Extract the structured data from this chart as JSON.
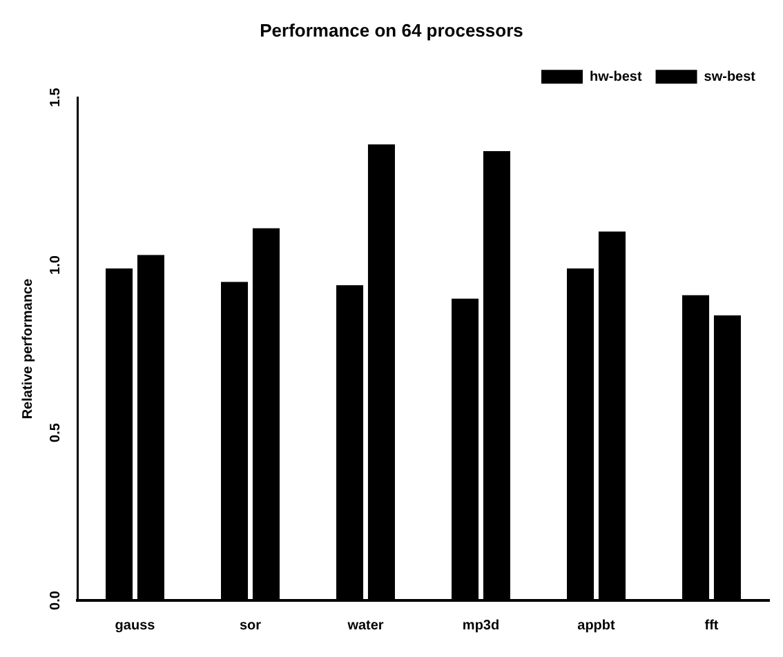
{
  "chart_data": {
    "type": "bar",
    "title": "Performance on 64 processors",
    "ylabel": "Relative performance",
    "categories": [
      "gauss",
      "sor",
      "water",
      "mp3d",
      "appbt",
      "fft"
    ],
    "series": [
      {
        "name": "hw-best",
        "color": "#000000",
        "values": [
          0.99,
          0.95,
          0.94,
          0.9,
          0.99,
          0.91
        ]
      },
      {
        "name": "sw-best",
        "color": "#000000",
        "values": [
          1.03,
          1.11,
          1.36,
          1.34,
          1.1,
          0.85
        ]
      }
    ],
    "ylim": [
      0,
      1.5
    ],
    "yticks": [
      {
        "value": 0,
        "label": "0.0"
      },
      {
        "value": 0.5,
        "label": "0.5"
      },
      {
        "value": 1,
        "label": "1.0"
      },
      {
        "value": 1.5,
        "label": "1.5"
      }
    ],
    "grid": false,
    "legend": "top right"
  }
}
